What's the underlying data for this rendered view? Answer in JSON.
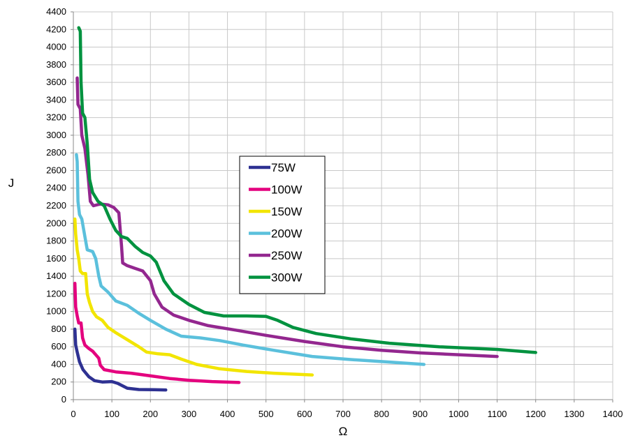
{
  "chart_data": {
    "type": "line",
    "title": "",
    "xlabel": "Ω",
    "ylabel": "J",
    "xlim": [
      0,
      1400
    ],
    "ylim": [
      0,
      4400
    ],
    "xticks": [
      0,
      100,
      200,
      300,
      400,
      500,
      600,
      700,
      800,
      900,
      1000,
      1100,
      1200,
      1300,
      1400
    ],
    "yticks": [
      0,
      200,
      400,
      600,
      800,
      1000,
      1200,
      1400,
      1600,
      1800,
      2000,
      2200,
      2400,
      2600,
      2800,
      3000,
      3200,
      3400,
      3600,
      3800,
      4000,
      4200,
      4400
    ],
    "grid": true,
    "legend_position": "center",
    "series": [
      {
        "name": "75W",
        "color": "#2e3192",
        "points": [
          [
            4,
            800
          ],
          [
            6,
            620
          ],
          [
            10,
            540
          ],
          [
            16,
            430
          ],
          [
            25,
            340
          ],
          [
            40,
            260
          ],
          [
            55,
            215
          ],
          [
            75,
            200
          ],
          [
            100,
            205
          ],
          [
            115,
            185
          ],
          [
            140,
            130
          ],
          [
            170,
            115
          ],
          [
            210,
            112
          ],
          [
            240,
            110
          ]
        ]
      },
      {
        "name": "100W",
        "color": "#e4007e",
        "points": [
          [
            4,
            1320
          ],
          [
            6,
            1050
          ],
          [
            10,
            950
          ],
          [
            14,
            870
          ],
          [
            20,
            870
          ],
          [
            24,
            700
          ],
          [
            30,
            620
          ],
          [
            40,
            580
          ],
          [
            50,
            550
          ],
          [
            60,
            500
          ],
          [
            66,
            470
          ],
          [
            70,
            390
          ],
          [
            80,
            340
          ],
          [
            110,
            315
          ],
          [
            150,
            300
          ],
          [
            200,
            270
          ],
          [
            250,
            240
          ],
          [
            300,
            220
          ],
          [
            360,
            205
          ],
          [
            430,
            195
          ]
        ]
      },
      {
        "name": "150W",
        "color": "#f2e500",
        "points": [
          [
            4,
            2050
          ],
          [
            6,
            1880
          ],
          [
            10,
            1700
          ],
          [
            14,
            1600
          ],
          [
            18,
            1460
          ],
          [
            24,
            1430
          ],
          [
            32,
            1430
          ],
          [
            36,
            1200
          ],
          [
            42,
            1100
          ],
          [
            50,
            1000
          ],
          [
            60,
            940
          ],
          [
            75,
            900
          ],
          [
            90,
            820
          ],
          [
            110,
            760
          ],
          [
            140,
            680
          ],
          [
            170,
            600
          ],
          [
            190,
            540
          ],
          [
            220,
            520
          ],
          [
            250,
            510
          ],
          [
            280,
            460
          ],
          [
            320,
            400
          ],
          [
            380,
            350
          ],
          [
            450,
            320
          ],
          [
            520,
            300
          ],
          [
            620,
            280
          ]
        ]
      },
      {
        "name": "200W",
        "color": "#5bc0dc",
        "points": [
          [
            8,
            2780
          ],
          [
            10,
            2700
          ],
          [
            12,
            2250
          ],
          [
            16,
            2100
          ],
          [
            22,
            2050
          ],
          [
            30,
            1850
          ],
          [
            36,
            1700
          ],
          [
            50,
            1680
          ],
          [
            58,
            1600
          ],
          [
            66,
            1400
          ],
          [
            72,
            1290
          ],
          [
            90,
            1220
          ],
          [
            110,
            1120
          ],
          [
            140,
            1070
          ],
          [
            170,
            980
          ],
          [
            200,
            900
          ],
          [
            240,
            800
          ],
          [
            280,
            720
          ],
          [
            330,
            700
          ],
          [
            380,
            670
          ],
          [
            440,
            620
          ],
          [
            520,
            560
          ],
          [
            620,
            490
          ],
          [
            720,
            455
          ],
          [
            810,
            430
          ],
          [
            910,
            400
          ]
        ]
      },
      {
        "name": "250W",
        "color": "#93278f",
        "points": [
          [
            10,
            3650
          ],
          [
            12,
            3350
          ],
          [
            18,
            3300
          ],
          [
            22,
            3000
          ],
          [
            30,
            2850
          ],
          [
            38,
            2550
          ],
          [
            44,
            2250
          ],
          [
            52,
            2200
          ],
          [
            70,
            2220
          ],
          [
            90,
            2210
          ],
          [
            105,
            2180
          ],
          [
            118,
            2120
          ],
          [
            125,
            1750
          ],
          [
            128,
            1550
          ],
          [
            140,
            1520
          ],
          [
            160,
            1490
          ],
          [
            180,
            1460
          ],
          [
            200,
            1350
          ],
          [
            210,
            1200
          ],
          [
            230,
            1050
          ],
          [
            260,
            960
          ],
          [
            300,
            900
          ],
          [
            350,
            840
          ],
          [
            420,
            790
          ],
          [
            500,
            730
          ],
          [
            600,
            660
          ],
          [
            700,
            600
          ],
          [
            800,
            560
          ],
          [
            900,
            530
          ],
          [
            1000,
            510
          ],
          [
            1100,
            490
          ]
        ]
      },
      {
        "name": "300W",
        "color": "#00923f",
        "points": [
          [
            14,
            4220
          ],
          [
            18,
            4180
          ],
          [
            20,
            3600
          ],
          [
            24,
            3250
          ],
          [
            30,
            3200
          ],
          [
            36,
            2900
          ],
          [
            42,
            2500
          ],
          [
            50,
            2350
          ],
          [
            64,
            2250
          ],
          [
            80,
            2200
          ],
          [
            95,
            2050
          ],
          [
            110,
            1920
          ],
          [
            125,
            1850
          ],
          [
            140,
            1830
          ],
          [
            160,
            1740
          ],
          [
            180,
            1670
          ],
          [
            200,
            1630
          ],
          [
            215,
            1560
          ],
          [
            235,
            1350
          ],
          [
            260,
            1200
          ],
          [
            300,
            1080
          ],
          [
            340,
            990
          ],
          [
            390,
            950
          ],
          [
            450,
            950
          ],
          [
            500,
            945
          ],
          [
            530,
            900
          ],
          [
            570,
            820
          ],
          [
            630,
            750
          ],
          [
            720,
            690
          ],
          [
            820,
            640
          ],
          [
            950,
            600
          ],
          [
            1100,
            570
          ],
          [
            1200,
            535
          ]
        ]
      }
    ]
  }
}
